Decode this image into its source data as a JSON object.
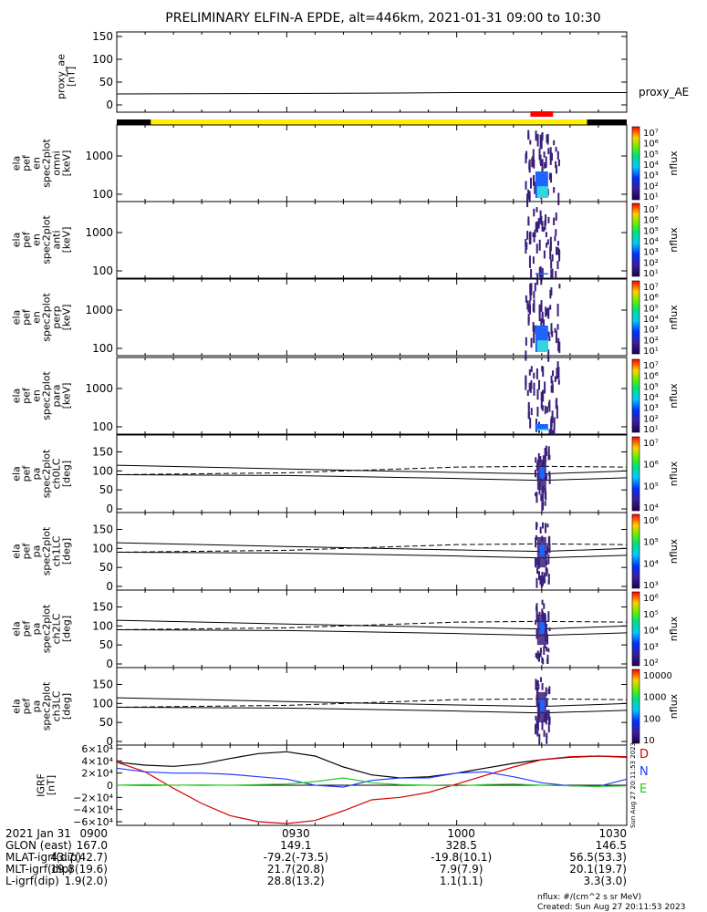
{
  "title": "PRELIMINARY ELFIN-A EPDE, alt=446km, 2021-01-31 09:00 to 10:30",
  "colors": {
    "black_bar": "#000000",
    "yellow_bar": "#ffee00",
    "red_marker": "#ff0000",
    "spec_dark": "#3a1f7a",
    "spec_mid": "#1e64ff",
    "spec_light": "#35d5e0",
    "D": "#d40000",
    "N": "#1e3cff",
    "E": "#22cc22",
    "H": "#000000"
  },
  "panels": {
    "ae": {
      "ylabel": "proxy_ae\n[nT]",
      "yticks": [
        "150",
        "100",
        "50",
        "0"
      ],
      "legend": "proxy_AE"
    },
    "omni": {
      "ylabel": "ela\npef\nen\nspec2plot\nomni\n[keV]",
      "yticks": [
        "1000",
        "100"
      ],
      "zlabel": "nflux"
    },
    "anti": {
      "ylabel": "ela\npef\nen\nspec2plot\nanti\n[keV]",
      "yticks": [
        "1000",
        "100"
      ],
      "zlabel": "nflux"
    },
    "perp": {
      "ylabel": "ela\npef\nen\nspec2plot\nperp\n[keV]",
      "yticks": [
        "1000",
        "100"
      ],
      "zlabel": "nflux"
    },
    "para": {
      "ylabel": "ela\npef\nen\nspec2plot\npara\n[keV]",
      "yticks": [
        "1000",
        "100"
      ],
      "zlabel": "nflux"
    },
    "ch0": {
      "ylabel": "ela\npef\npa\nspec2plot\nch0LC\n[deg]",
      "yticks": [
        "150",
        "100",
        "50",
        "0"
      ],
      "zlabel": "nflux"
    },
    "ch1": {
      "ylabel": "ela\npef\npa\nspec2plot\nch1LC\n[deg]",
      "yticks": [
        "150",
        "100",
        "50",
        "0"
      ],
      "zlabel": "nflux"
    },
    "ch2": {
      "ylabel": "ela\npef\npa\nspec2plot\nch2LC\n[deg]",
      "yticks": [
        "150",
        "100",
        "50",
        "0"
      ],
      "zlabel": "nflux"
    },
    "ch3": {
      "ylabel": "ela\npef\npa\nspec2plot\nch3LC\n[deg]",
      "yticks": [
        "150",
        "100",
        "50",
        "0"
      ],
      "zlabel": "nflux"
    },
    "igrf": {
      "ylabel": "IGRF\n[nT]",
      "yticks": [
        "6×10⁴",
        "4×10⁴",
        "2×10⁴",
        "0",
        "−2×10⁴",
        "−4×10⁴",
        "−6×10⁴"
      ],
      "legend": [
        "D",
        "N",
        "E"
      ],
      "timestamp_vertical": "Sun Aug 27 20:11:53 2023"
    }
  },
  "colorbars": {
    "omni": [
      "10⁷",
      "10⁶",
      "10⁵",
      "10⁴",
      "10³",
      "10²",
      "10¹"
    ],
    "anti": [
      "10⁷",
      "10⁶",
      "10⁵",
      "10⁴",
      "10³",
      "10²",
      "10¹"
    ],
    "perp": [
      "10⁷",
      "10⁶",
      "10⁵",
      "10⁴",
      "10³",
      "10²",
      "10¹"
    ],
    "para": [
      "10⁷",
      "10⁶",
      "10⁵",
      "10⁴",
      "10³",
      "10²",
      "10¹"
    ],
    "ch0": [
      "10⁷",
      "10⁶",
      "10⁵",
      "10⁴"
    ],
    "ch1": [
      "10⁶",
      "10⁵",
      "10⁴",
      "10³"
    ],
    "ch2": [
      "10⁶",
      "10⁵",
      "10⁴",
      "10³",
      "10²"
    ],
    "ch3": [
      "10000",
      "1000",
      "100",
      "10"
    ]
  },
  "footer": {
    "row_labels": [
      "2021 Jan 31",
      "GLON (east)",
      "MLAT-igrf(dip)",
      "MLT-igrf(dip)",
      "L-igrf(dip)"
    ],
    "columns": [
      [
        "0900",
        "167.0",
        "43.7(42.7)",
        "19.8(19.6)",
        "1.9(2.0)"
      ],
      [
        "0930",
        "149.1",
        "-79.2(-73.5)",
        "21.7(20.8)",
        "28.8(13.2)"
      ],
      [
        "1000",
        "328.5",
        "-19.8(10.1)",
        "7.9(7.9)",
        "1.1(1.1)"
      ],
      [
        "1030",
        "146.5",
        "56.5(53.3)",
        "20.1(19.7)",
        "3.3(3.0)"
      ]
    ],
    "note1": "nflux: #/(cm^2 s sr MeV)",
    "note2": "Created: Sun Aug 27 20:11:53 2023"
  },
  "chart_data": {
    "type": "line",
    "title": "PRELIMINARY ELFIN-A EPDE, alt=446km, 2021-01-31 09:00 to 10:30",
    "x_range": [
      "09:00",
      "10:30"
    ],
    "x_ticks": [
      "0900",
      "0930",
      "1000",
      "1030"
    ],
    "series": [
      {
        "name": "proxy_AE",
        "x": [
          "09:00",
          "09:30",
          "09:50",
          "10:00",
          "10:30"
        ],
        "y": [
          24,
          25,
          26,
          27,
          27
        ]
      }
    ],
    "flags": {
      "science_zone": [
        "09:06",
        "10:23"
      ],
      "highlight": [
        "10:13",
        "10:17"
      ]
    },
    "burst_window": [
      "10:12",
      "10:18"
    ],
    "ae_ylim": [
      0,
      160
    ],
    "energy_range_keV": [
      60,
      7000
    ],
    "pa_ylim": [
      0,
      180
    ],
    "igrf_ylim": [
      -60000,
      60000
    ],
    "igrf": {
      "x": [
        "09:00",
        "09:05",
        "09:10",
        "09:15",
        "09:20",
        "09:25",
        "09:30",
        "09:35",
        "09:40",
        "09:45",
        "09:50",
        "09:55",
        "10:00",
        "10:05",
        "10:10",
        "10:15",
        "10:20",
        "10:25",
        "10:30"
      ],
      "H": [
        38000,
        33000,
        31000,
        35000,
        44000,
        52000,
        55000,
        48000,
        30000,
        17000,
        12000,
        14000,
        20000,
        28000,
        36000,
        42000,
        46000,
        48000,
        46000
      ],
      "D": [
        38000,
        22000,
        -5000,
        -30000,
        -50000,
        -60000,
        -63000,
        -58000,
        -42000,
        -24000,
        -20000,
        -12000,
        2000,
        16000,
        30000,
        42000,
        47000,
        48000,
        47000
      ],
      "N": [
        28000,
        22000,
        20000,
        20000,
        18000,
        14000,
        10000,
        0,
        -3000,
        8000,
        12000,
        12000,
        20000,
        22000,
        14000,
        4000,
        -1000,
        -2000,
        10000
      ],
      "E": [
        0,
        1000,
        0,
        500,
        0,
        1000,
        2000,
        6000,
        12000,
        4000,
        1000,
        0,
        -1000,
        1000,
        2000,
        0,
        -1000,
        -2000,
        -1000
      ]
    }
  }
}
